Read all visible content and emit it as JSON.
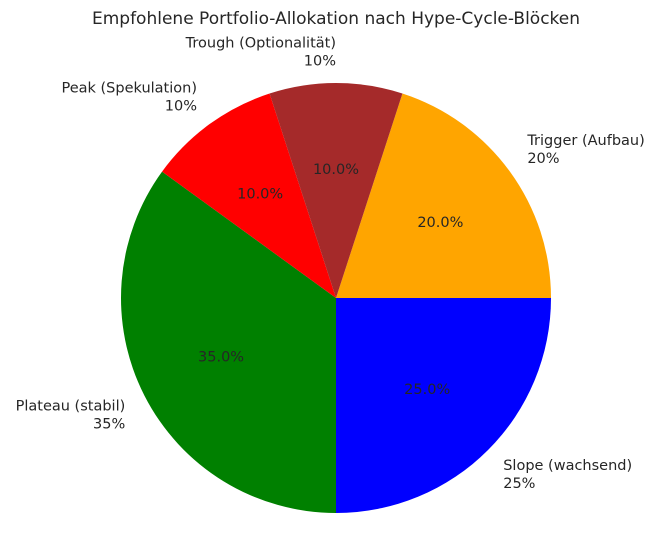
{
  "chart_data": {
    "type": "pie",
    "title": "Empfohlene Portfolio-Allokation nach Hype-Cycle-Blöcken",
    "slices": [
      {
        "name": "Trigger (Aufbau)",
        "value": 20,
        "label_pct": "20%",
        "inner_pct": "20.0%",
        "color": "#FFA500"
      },
      {
        "name": "Slope (wachsend)",
        "value": 25,
        "label_pct": "25%",
        "inner_pct": "25.0%",
        "color": "#0000FF"
      },
      {
        "name": "Plateau (stabil)",
        "value": 35,
        "label_pct": "35%",
        "inner_pct": "35.0%",
        "color": "#008000"
      },
      {
        "name": "Peak (Spekulation)",
        "value": 10,
        "label_pct": "10%",
        "inner_pct": "10.0%",
        "color": "#FF0000"
      },
      {
        "name": "Trough (Optionalität)",
        "value": 10,
        "label_pct": "10%",
        "inner_pct": "10.0%",
        "color": "#A52A2A"
      }
    ],
    "start_angle_deg": 72,
    "direction": "clockwise",
    "legend": "none"
  }
}
